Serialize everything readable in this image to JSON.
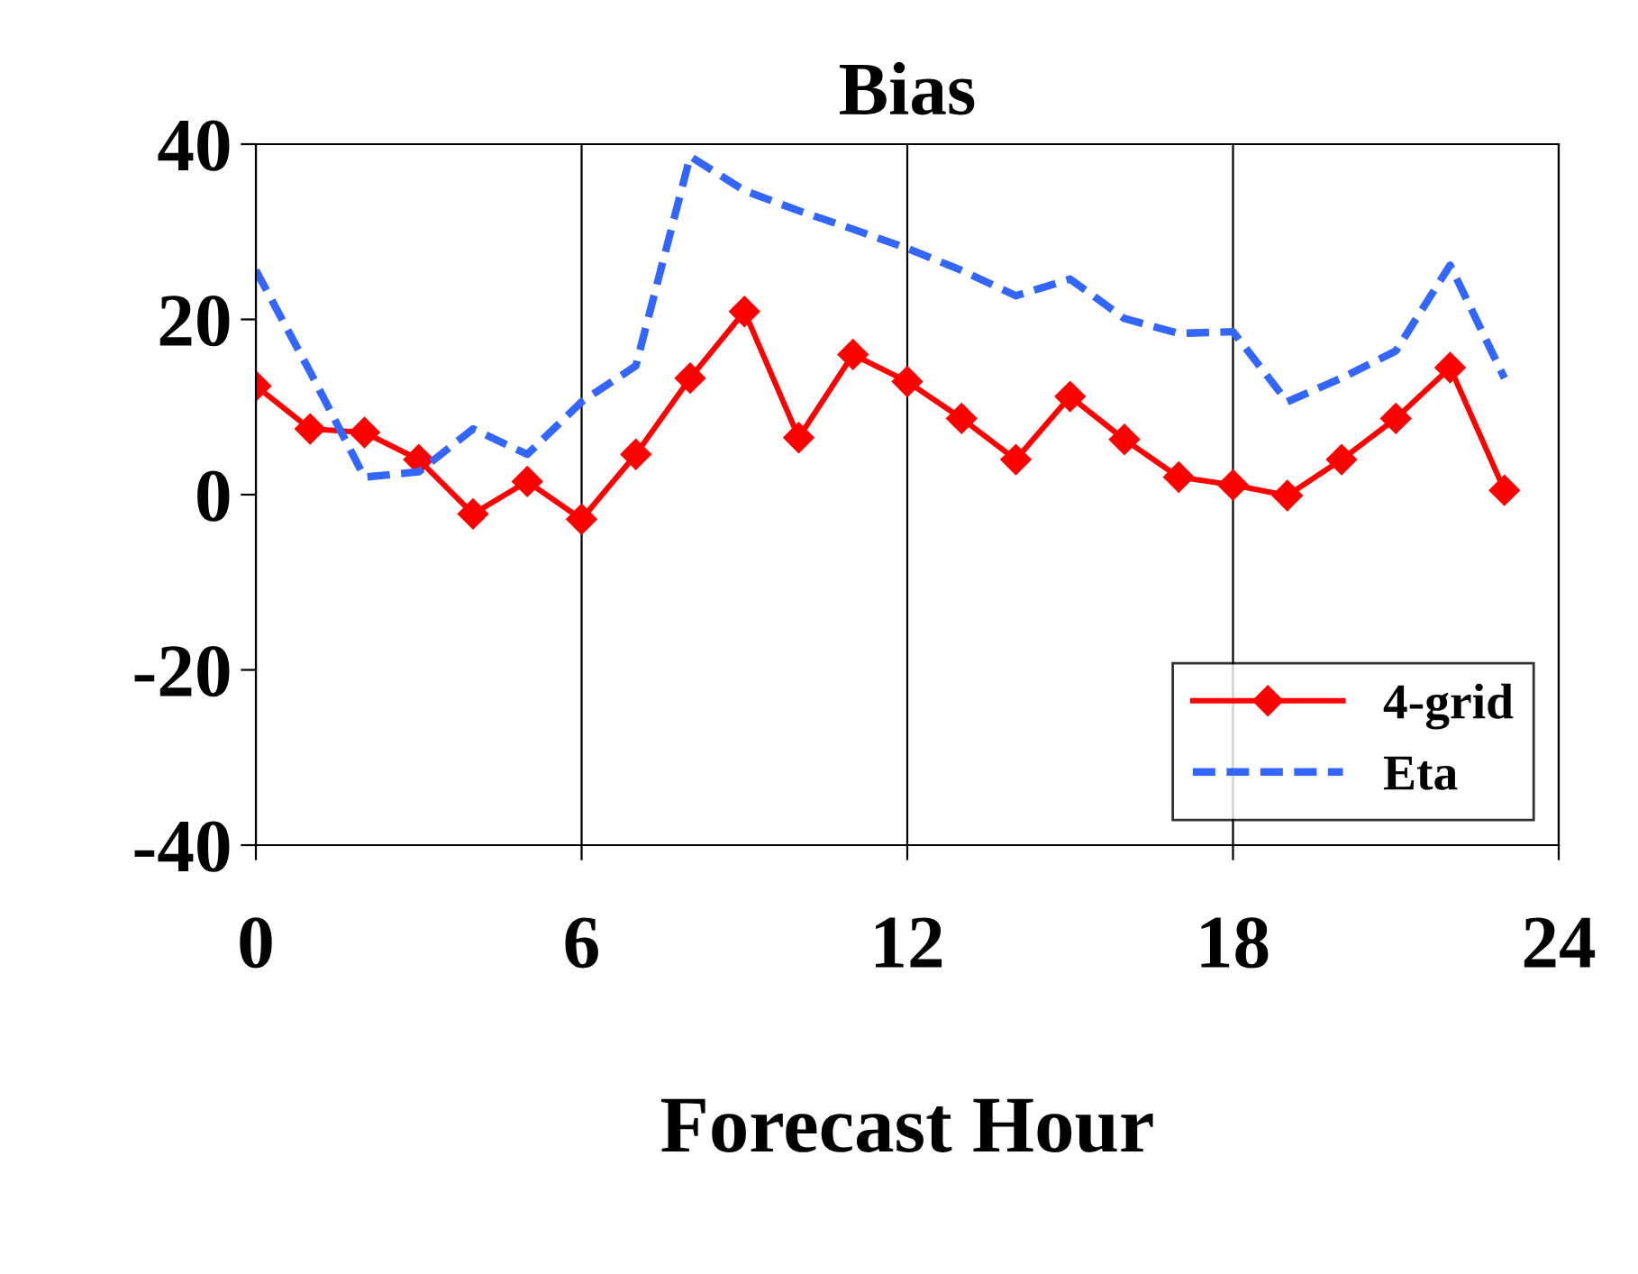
{
  "chart_data": {
    "type": "line",
    "title": "Bias",
    "xlabel": "Forecast Hour",
    "x": [
      0,
      1,
      2,
      3,
      4,
      5,
      6,
      7,
      8,
      9,
      10,
      11,
      12,
      13,
      14,
      15,
      16,
      17,
      18,
      19,
      20,
      21,
      22,
      23
    ],
    "series": [
      {
        "name": "4-grid",
        "color": "#ff0000",
        "marker": "diamond",
        "line_style": "solid",
        "values": [
          12.4,
          7.5,
          7.1,
          4.0,
          -2.2,
          1.5,
          -2.8,
          4.6,
          13.3,
          20.9,
          6.5,
          16.0,
          12.9,
          8.7,
          4.0,
          11.2,
          6.3,
          2.0,
          1.1,
          -0.1,
          4.0,
          8.7,
          14.5,
          0.5
        ]
      },
      {
        "name": "Eta",
        "color": "#3366ff",
        "marker": "none",
        "line_style": "dashed",
        "values": [
          25.6,
          14.0,
          2.0,
          2.6,
          7.5,
          4.6,
          10.6,
          14.7,
          38.6,
          34.7,
          32.4,
          30.3,
          28.1,
          25.6,
          22.7,
          24.6,
          20.1,
          18.4,
          18.6,
          10.6,
          13.3,
          16.4,
          26.2,
          13.3
        ]
      }
    ],
    "xlim": [
      0,
      24
    ],
    "xticks": [
      0,
      6,
      12,
      18,
      24
    ],
    "ylim": [
      -40,
      40
    ],
    "yticks": [
      -40,
      -20,
      0,
      20,
      40
    ],
    "grid": "x",
    "legend": "bottom right"
  }
}
